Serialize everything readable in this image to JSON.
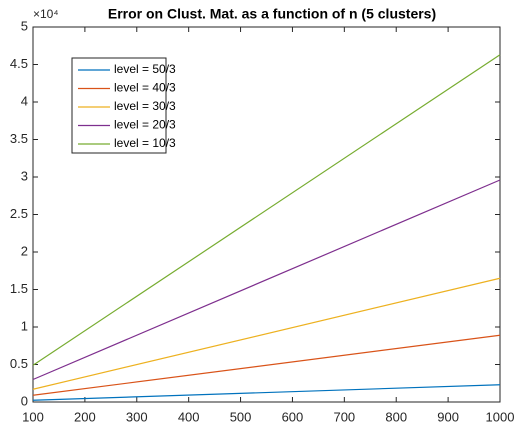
{
  "chart_data": {
    "type": "line",
    "title": "Error on Clust. Mat. as a function of n (5 clusters)",
    "y_multiplier": "×10⁴",
    "x": [
      100,
      1000
    ],
    "series": [
      {
        "name": "level = 50/3",
        "color": "#0072BD",
        "values": [
          0.023,
          0.23
        ]
      },
      {
        "name": "level = 40/3",
        "color": "#D95319",
        "values": [
          0.09,
          0.89
        ]
      },
      {
        "name": "level = 30/3",
        "color": "#EDB120",
        "values": [
          0.17,
          1.65
        ]
      },
      {
        "name": "level = 20/3",
        "color": "#7E2F8E",
        "values": [
          0.3,
          2.96
        ]
      },
      {
        "name": "level = 10/3",
        "color": "#77AC30",
        "values": [
          0.49,
          4.63
        ]
      }
    ],
    "xlim": [
      100,
      1000
    ],
    "xticks": [
      100,
      200,
      300,
      400,
      500,
      600,
      700,
      800,
      900,
      1000
    ],
    "ylim": [
      0,
      5
    ],
    "yticks": [
      0,
      0.5,
      1,
      1.5,
      2,
      2.5,
      3,
      3.5,
      4,
      4.5,
      5
    ],
    "grid": false,
    "legend": "upper left"
  }
}
